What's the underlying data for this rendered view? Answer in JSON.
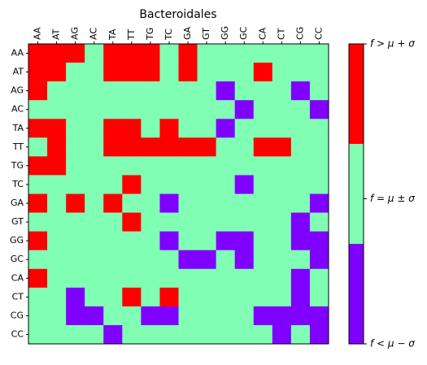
{
  "chart_data": {
    "type": "heatmap",
    "title": "Bacteroidales",
    "x_labels": [
      "AA",
      "AT",
      "AG",
      "AC",
      "TA",
      "TT",
      "TG",
      "TC",
      "GA",
      "GT",
      "GG",
      "GC",
      "CA",
      "CT",
      "CG",
      "CC"
    ],
    "y_labels": [
      "AA",
      "AT",
      "AG",
      "AC",
      "TA",
      "TT",
      "TG",
      "TC",
      "GA",
      "GT",
      "GG",
      "GC",
      "CA",
      "CT",
      "CG",
      "CC"
    ],
    "category_colors": {
      "high": "#ff0000",
      "mid": "#80ffb4",
      "low": "#8000ff"
    },
    "colorbar_labels": {
      "high": "f > μ + σ",
      "mid": "f = μ ± σ",
      "low": "f < μ − σ"
    },
    "cells": [
      [
        "high",
        "high",
        "high",
        "mid",
        "high",
        "high",
        "high",
        "mid",
        "high",
        "mid",
        "mid",
        "mid",
        "mid",
        "mid",
        "mid",
        "mid"
      ],
      [
        "high",
        "high",
        "mid",
        "mid",
        "high",
        "high",
        "high",
        "mid",
        "high",
        "mid",
        "mid",
        "mid",
        "high",
        "mid",
        "mid",
        "mid"
      ],
      [
        "high",
        "mid",
        "mid",
        "mid",
        "mid",
        "mid",
        "mid",
        "mid",
        "mid",
        "mid",
        "low",
        "mid",
        "mid",
        "mid",
        "low",
        "mid"
      ],
      [
        "mid",
        "mid",
        "mid",
        "mid",
        "mid",
        "mid",
        "mid",
        "mid",
        "mid",
        "mid",
        "mid",
        "low",
        "mid",
        "mid",
        "mid",
        "low"
      ],
      [
        "high",
        "high",
        "mid",
        "mid",
        "high",
        "high",
        "mid",
        "high",
        "mid",
        "mid",
        "low",
        "mid",
        "mid",
        "mid",
        "mid",
        "mid"
      ],
      [
        "mid",
        "high",
        "mid",
        "mid",
        "high",
        "high",
        "high",
        "high",
        "high",
        "high",
        "mid",
        "mid",
        "high",
        "high",
        "mid",
        "mid"
      ],
      [
        "high",
        "high",
        "mid",
        "mid",
        "mid",
        "mid",
        "mid",
        "mid",
        "mid",
        "mid",
        "mid",
        "mid",
        "mid",
        "mid",
        "mid",
        "mid"
      ],
      [
        "mid",
        "mid",
        "mid",
        "mid",
        "mid",
        "high",
        "mid",
        "mid",
        "mid",
        "mid",
        "mid",
        "low",
        "mid",
        "mid",
        "mid",
        "mid"
      ],
      [
        "high",
        "mid",
        "high",
        "mid",
        "high",
        "mid",
        "mid",
        "low",
        "mid",
        "mid",
        "mid",
        "mid",
        "mid",
        "mid",
        "mid",
        "low"
      ],
      [
        "mid",
        "mid",
        "mid",
        "mid",
        "mid",
        "high",
        "mid",
        "mid",
        "mid",
        "mid",
        "mid",
        "mid",
        "mid",
        "mid",
        "low",
        "mid"
      ],
      [
        "high",
        "mid",
        "mid",
        "mid",
        "mid",
        "mid",
        "mid",
        "low",
        "mid",
        "mid",
        "low",
        "low",
        "mid",
        "mid",
        "low",
        "low"
      ],
      [
        "mid",
        "mid",
        "mid",
        "mid",
        "mid",
        "mid",
        "mid",
        "mid",
        "low",
        "low",
        "mid",
        "low",
        "mid",
        "mid",
        "mid",
        "low"
      ],
      [
        "high",
        "mid",
        "mid",
        "mid",
        "mid",
        "mid",
        "mid",
        "mid",
        "mid",
        "mid",
        "mid",
        "mid",
        "mid",
        "mid",
        "low",
        "mid"
      ],
      [
        "mid",
        "mid",
        "low",
        "mid",
        "mid",
        "high",
        "mid",
        "high",
        "mid",
        "mid",
        "mid",
        "mid",
        "mid",
        "mid",
        "low",
        "mid"
      ],
      [
        "mid",
        "mid",
        "low",
        "low",
        "mid",
        "mid",
        "low",
        "low",
        "mid",
        "mid",
        "mid",
        "mid",
        "low",
        "low",
        "low",
        "low"
      ],
      [
        "mid",
        "mid",
        "mid",
        "mid",
        "low",
        "mid",
        "mid",
        "mid",
        "mid",
        "mid",
        "mid",
        "mid",
        "mid",
        "low",
        "mid",
        "low"
      ]
    ],
    "grid": false
  }
}
